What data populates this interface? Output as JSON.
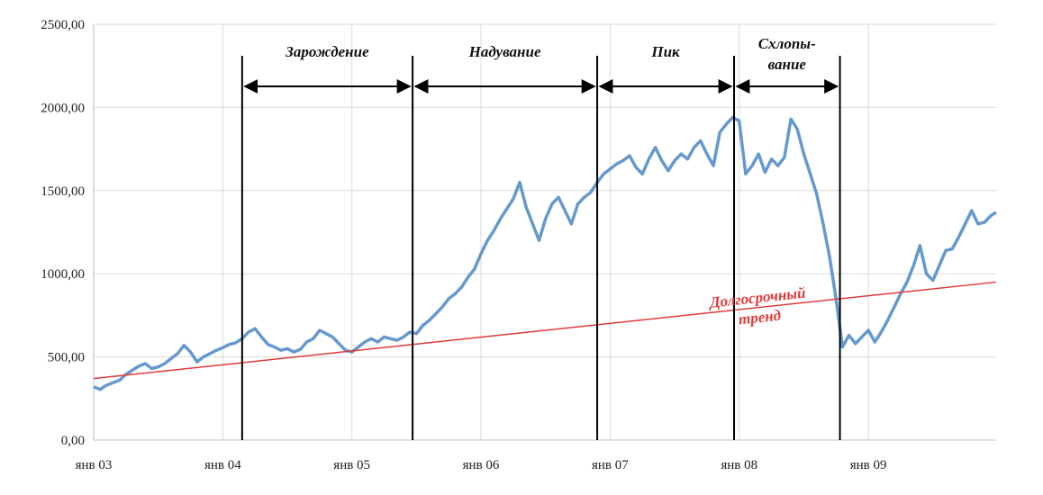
{
  "chart_data": {
    "type": "line",
    "y_ticks": [
      "0,00",
      "500,00",
      "1000,00",
      "1500,00",
      "2000,00",
      "2500,00"
    ],
    "ylim": [
      0,
      2500
    ],
    "x_ticks": [
      "янв 03",
      "янв 04",
      "янв 05",
      "янв 06",
      "янв 07",
      "янв 08",
      "янв 09"
    ],
    "xlim": [
      2003.0,
      2009.99
    ],
    "grid": true,
    "colors": {
      "series": "#6699cc",
      "trend": "#e03a3a",
      "phase_lines": "#000000"
    },
    "series": [
      {
        "x": [
          2003.0,
          2003.05,
          2003.1,
          2003.15,
          2003.2,
          2003.25,
          2003.3,
          2003.35,
          2003.4,
          2003.45,
          2003.5,
          2003.55,
          2003.6,
          2003.65,
          2003.7,
          2003.75,
          2003.8,
          2003.85,
          2003.9,
          2003.95,
          2004.0,
          2004.05,
          2004.1,
          2004.15,
          2004.2,
          2004.25,
          2004.3,
          2004.35,
          2004.4,
          2004.45,
          2004.5,
          2004.55,
          2004.6,
          2004.65,
          2004.7,
          2004.75,
          2004.8,
          2004.85,
          2004.9,
          2004.95,
          2005.0,
          2005.05,
          2005.1,
          2005.15,
          2005.2,
          2005.25,
          2005.3,
          2005.35,
          2005.4,
          2005.45,
          2005.5,
          2005.55,
          2005.6,
          2005.65,
          2005.7,
          2005.75,
          2005.8,
          2005.85,
          2005.9,
          2005.95,
          2006.0,
          2006.05,
          2006.1,
          2006.15,
          2006.2,
          2006.25,
          2006.3,
          2006.35,
          2006.4,
          2006.45,
          2006.5,
          2006.55,
          2006.6,
          2006.65,
          2006.7,
          2006.75,
          2006.8,
          2006.85,
          2006.9,
          2006.95,
          2007.0,
          2007.05,
          2007.1,
          2007.15,
          2007.2,
          2007.25,
          2007.3,
          2007.35,
          2007.4,
          2007.45,
          2007.5,
          2007.55,
          2007.6,
          2007.65,
          2007.7,
          2007.75,
          2007.8,
          2007.85,
          2007.9,
          2007.95,
          2008.0,
          2008.05,
          2008.1,
          2008.15,
          2008.2,
          2008.25,
          2008.3,
          2008.35,
          2008.4,
          2008.45,
          2008.5,
          2008.55,
          2008.6,
          2008.65,
          2008.7,
          2008.75,
          2008.8,
          2008.85,
          2008.9,
          2008.95,
          2009.0,
          2009.05,
          2009.1,
          2009.15,
          2009.2,
          2009.25,
          2009.3,
          2009.35,
          2009.4,
          2009.45,
          2009.5,
          2009.55,
          2009.6,
          2009.65,
          2009.7,
          2009.75,
          2009.8,
          2009.85,
          2009.9,
          2009.95,
          2009.99
        ],
        "y": [
          320,
          305,
          330,
          345,
          360,
          395,
          420,
          445,
          460,
          430,
          440,
          460,
          490,
          520,
          570,
          530,
          470,
          500,
          520,
          540,
          555,
          575,
          585,
          610,
          650,
          670,
          620,
          575,
          560,
          540,
          550,
          530,
          545,
          590,
          610,
          660,
          640,
          620,
          580,
          540,
          530,
          560,
          590,
          610,
          590,
          620,
          610,
          600,
          620,
          650,
          640,
          690,
          720,
          760,
          800,
          850,
          880,
          920,
          980,
          1030,
          1120,
          1200,
          1260,
          1330,
          1390,
          1450,
          1550,
          1400,
          1300,
          1200,
          1330,
          1420,
          1460,
          1380,
          1300,
          1420,
          1460,
          1490,
          1550,
          1600,
          1630,
          1660,
          1680,
          1710,
          1640,
          1600,
          1690,
          1760,
          1680,
          1620,
          1680,
          1720,
          1690,
          1760,
          1800,
          1720,
          1650,
          1850,
          1900,
          1940,
          1920,
          1600,
          1650,
          1720,
          1610,
          1690,
          1650,
          1700,
          1930,
          1870,
          1720,
          1600,
          1480,
          1300,
          1100,
          850,
          560,
          630,
          580,
          620,
          660,
          590,
          650,
          720,
          800,
          880,
          950,
          1050,
          1170,
          1000,
          960,
          1050,
          1140,
          1150,
          1220,
          1300,
          1380,
          1300,
          1310,
          1350,
          1370
        ]
      },
      {
        "x": [
          2003.0,
          2009.99
        ],
        "y": [
          370,
          950
        ]
      }
    ],
    "phase_lines": [
      2004.15,
      2005.47,
      2006.9,
      2007.96,
      2008.78
    ],
    "phases": [
      {
        "label": "Зарождение",
        "from": 2004.15,
        "to": 2005.47
      },
      {
        "label": "Надувание",
        "from": 2005.47,
        "to": 2006.9
      },
      {
        "label": "Пик",
        "from": 2006.9,
        "to": 2007.96
      },
      {
        "label": "Схлопы-\nвание",
        "from": 2007.96,
        "to": 2008.78
      }
    ],
    "annotation": {
      "text": "Долгосрочный\nтренд",
      "x": 2008.6,
      "y": 800
    }
  }
}
